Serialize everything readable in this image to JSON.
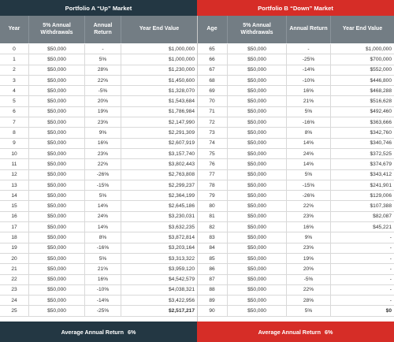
{
  "banner": {
    "left_title": "Portfolio A “Up” Market",
    "right_title": "Portfolio B “Down” Market"
  },
  "headers": {
    "left": [
      "Year",
      "5% Annual Withdrawals",
      "Annual Return",
      "Year End Value"
    ],
    "right": [
      "Age",
      "5% Annual Withdrawals",
      "Annual Return",
      "Year End Value"
    ]
  },
  "rows": [
    {
      "year": "0",
      "w_a": "$50,000",
      "r_a": "-",
      "v_a": "$1,000,000",
      "age": "65",
      "w_b": "$50,000",
      "r_b": "-",
      "v_b": "$1,000,000"
    },
    {
      "year": "1",
      "w_a": "$50,000",
      "r_a": "5%",
      "v_a": "$1,000,000",
      "age": "66",
      "w_b": "$50,000",
      "r_b": "-25%",
      "v_b": "$700,000"
    },
    {
      "year": "2",
      "w_a": "$50,000",
      "r_a": "28%",
      "v_a": "$1,230,000",
      "age": "67",
      "w_b": "$50,000",
      "r_b": "-14%",
      "v_b": "$552,000"
    },
    {
      "year": "3",
      "w_a": "$50,000",
      "r_a": "22%",
      "v_a": "$1,450,600",
      "age": "68",
      "w_b": "$50,000",
      "r_b": "-10%",
      "v_b": "$446,800"
    },
    {
      "year": "4",
      "w_a": "$50,000",
      "r_a": "-5%",
      "v_a": "$1,328,070",
      "age": "69",
      "w_b": "$50,000",
      "r_b": "16%",
      "v_b": "$468,288"
    },
    {
      "year": "5",
      "w_a": "$50,000",
      "r_a": "20%",
      "v_a": "$1,543,684",
      "age": "70",
      "w_b": "$50,000",
      "r_b": "21%",
      "v_b": "$516,628"
    },
    {
      "year": "6",
      "w_a": "$50,000",
      "r_a": "19%",
      "v_a": "$1,786,984",
      "age": "71",
      "w_b": "$50,000",
      "r_b": "5%",
      "v_b": "$492,460"
    },
    {
      "year": "7",
      "w_a": "$50,000",
      "r_a": "23%",
      "v_a": "$2,147,990",
      "age": "72",
      "w_b": "$50,000",
      "r_b": "-16%",
      "v_b": "$363,666"
    },
    {
      "year": "8",
      "w_a": "$50,000",
      "r_a": "9%",
      "v_a": "$2,291,309",
      "age": "73",
      "w_b": "$50,000",
      "r_b": "8%",
      "v_b": "$342,760"
    },
    {
      "year": "9",
      "w_a": "$50,000",
      "r_a": "16%",
      "v_a": "$2,607,919",
      "age": "74",
      "w_b": "$50,000",
      "r_b": "14%",
      "v_b": "$340,746"
    },
    {
      "year": "10",
      "w_a": "$50,000",
      "r_a": "23%",
      "v_a": "$3,157,740",
      "age": "75",
      "w_b": "$50,000",
      "r_b": "24%",
      "v_b": "$372,525"
    },
    {
      "year": "11",
      "w_a": "$50,000",
      "r_a": "22%",
      "v_a": "$3,802,443",
      "age": "76",
      "w_b": "$50,000",
      "r_b": "14%",
      "v_b": "$374,679"
    },
    {
      "year": "12",
      "w_a": "$50,000",
      "r_a": "-26%",
      "v_a": "$2,763,808",
      "age": "77",
      "w_b": "$50,000",
      "r_b": "5%",
      "v_b": "$343,412"
    },
    {
      "year": "13",
      "w_a": "$50,000",
      "r_a": "-15%",
      "v_a": "$2,299,237",
      "age": "78",
      "w_b": "$50,000",
      "r_b": "-15%",
      "v_b": "$241,901"
    },
    {
      "year": "14",
      "w_a": "$50,000",
      "r_a": "5%",
      "v_a": "$2,364,199",
      "age": "79",
      "w_b": "$50,000",
      "r_b": "-26%",
      "v_b": "$129,006"
    },
    {
      "year": "15",
      "w_a": "$50,000",
      "r_a": "14%",
      "v_a": "$2,645,186",
      "age": "80",
      "w_b": "$50,000",
      "r_b": "22%",
      "v_b": "$107,388"
    },
    {
      "year": "16",
      "w_a": "$50,000",
      "r_a": "24%",
      "v_a": "$3,230,031",
      "age": "81",
      "w_b": "$50,000",
      "r_b": "23%",
      "v_b": "$82,087"
    },
    {
      "year": "17",
      "w_a": "$50,000",
      "r_a": "14%",
      "v_a": "$3,632,235",
      "age": "82",
      "w_b": "$50,000",
      "r_b": "16%",
      "v_b": "$45,221"
    },
    {
      "year": "18",
      "w_a": "$50,000",
      "r_a": "8%",
      "v_a": "$3,872,814",
      "age": "83",
      "w_b": "$50,000",
      "r_b": "9%",
      "v_b": "-"
    },
    {
      "year": "19",
      "w_a": "$50,000",
      "r_a": "-16%",
      "v_a": "$3,203,164",
      "age": "84",
      "w_b": "$50,000",
      "r_b": "23%",
      "v_b": "-"
    },
    {
      "year": "20",
      "w_a": "$50,000",
      "r_a": "5%",
      "v_a": "$3,313,322",
      "age": "85",
      "w_b": "$50,000",
      "r_b": "19%",
      "v_b": "-"
    },
    {
      "year": "21",
      "w_a": "$50,000",
      "r_a": "21%",
      "v_a": "$3,959,120",
      "age": "86",
      "w_b": "$50,000",
      "r_b": "20%",
      "v_b": "-"
    },
    {
      "year": "22",
      "w_a": "$50,000",
      "r_a": "16%",
      "v_a": "$4,542,579",
      "age": "87",
      "w_b": "$50,000",
      "r_b": "-5%",
      "v_b": "-"
    },
    {
      "year": "23",
      "w_a": "$50,000",
      "r_a": "-10%",
      "v_a": "$4,038,321",
      "age": "88",
      "w_b": "$50,000",
      "r_b": "22%",
      "v_b": "-"
    },
    {
      "year": "24",
      "w_a": "$50,000",
      "r_a": "-14%",
      "v_a": "$3,422,956",
      "age": "89",
      "w_b": "$50,000",
      "r_b": "28%",
      "v_b": "-"
    },
    {
      "year": "25",
      "w_a": "$50,000",
      "r_a": "-25%",
      "v_a": "$2,517,217",
      "age": "90",
      "w_b": "$50,000",
      "r_b": "5%",
      "v_b": "$0"
    }
  ],
  "footer": {
    "left_label": "Average Annual Return",
    "left_value": "6%",
    "right_label": "Average Annual Return",
    "right_value": "6%"
  },
  "colors": {
    "portfolio_a": "#233743",
    "portfolio_b": "#d62d27",
    "header_gray": "#737d84"
  }
}
